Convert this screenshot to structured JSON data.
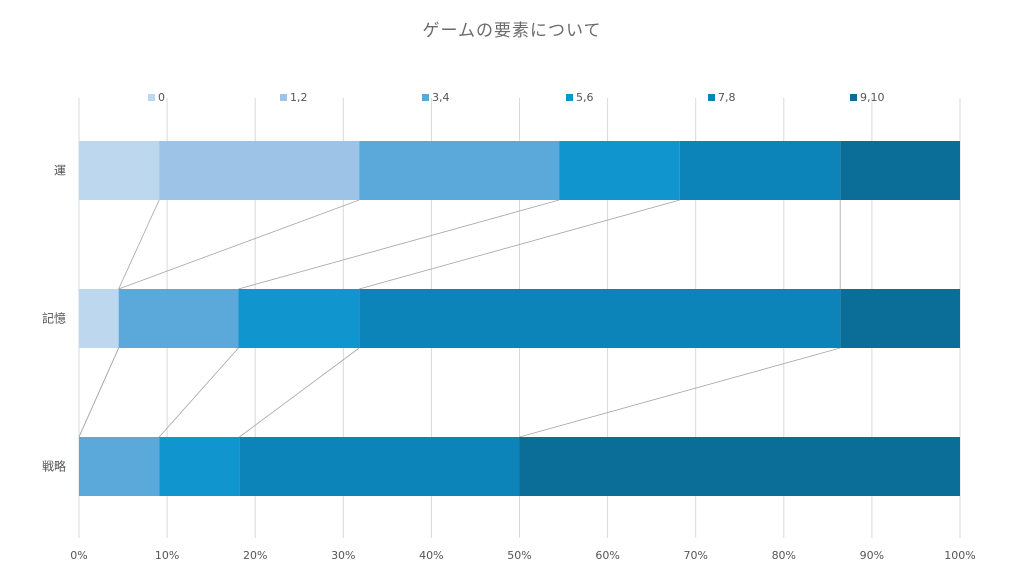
{
  "chart_data": {
    "type": "bar",
    "orientation": "horizontal",
    "stacked": "percent",
    "title": "ゲームの要素について",
    "categories": [
      "運",
      "記憶",
      "戦略"
    ],
    "series": [
      {
        "name": "0",
        "color": "#bdd7ee",
        "values": [
          9.1,
          4.5,
          0.0
        ]
      },
      {
        "name": "1,2",
        "color": "#9dc3e6",
        "values": [
          22.7,
          0.0,
          0.0
        ]
      },
      {
        "name": "3,4",
        "color": "#5ba9db",
        "values": [
          22.7,
          13.6,
          9.1
        ]
      },
      {
        "name": "5,6",
        "color": "#1195cf",
        "values": [
          13.7,
          13.7,
          9.1
        ]
      },
      {
        "name": "7,8",
        "color": "#0d84b9",
        "values": [
          18.2,
          54.6,
          31.8
        ]
      },
      {
        "name": "9,10",
        "color": "#0a6e99",
        "values": [
          13.6,
          13.6,
          50.0
        ]
      }
    ],
    "x_ticks": [
      "0%",
      "10%",
      "20%",
      "30%",
      "40%",
      "50%",
      "60%",
      "70%",
      "80%",
      "90%",
      "100%"
    ],
    "xlim": [
      0,
      100
    ],
    "grid": "vertical",
    "legend_position": "top",
    "series_lines": true
  }
}
